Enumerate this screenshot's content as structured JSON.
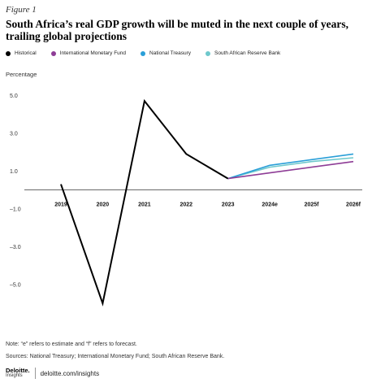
{
  "figure_label": "Figure 1",
  "title": "South Africa’s real GDP growth will be muted in the next couple of years, trailing global projections",
  "note": "Note: “e” refers to estimate and “f” refers to forecast.",
  "sources": "Sources: National Treasury; International Monetary Fund; South African Reserve Bank.",
  "footer": {
    "logo_main": "Deloitte.",
    "logo_sub": "Insights",
    "url": "deloitte.com/insights"
  },
  "chart_data": {
    "type": "line",
    "title": "",
    "xlabel": "",
    "ylabel": "Percentage",
    "categories": [
      "2019",
      "2020",
      "2021",
      "2022",
      "2023",
      "2024e",
      "2025f",
      "2026f"
    ],
    "ylim": [
      -7.5,
      6.0
    ],
    "yticks": [
      5.0,
      3.0,
      1.0,
      -1.0,
      -3.0,
      -5.0
    ],
    "ytick_labels": [
      "5.0",
      "3.0",
      "1.0",
      "–1.0",
      "–3.0",
      "–5.0"
    ],
    "grid": false,
    "legend_position": "top-left",
    "series": [
      {
        "name": "Historical",
        "color": "#000000",
        "values": [
          0.3,
          -6.0,
          4.7,
          1.9,
          0.6,
          null,
          null,
          null
        ]
      },
      {
        "name": "International Monetary Fund",
        "color": "#8e3d96",
        "values": [
          null,
          null,
          null,
          null,
          0.6,
          0.9,
          1.2,
          1.5
        ]
      },
      {
        "name": "National Treasury",
        "color": "#2a9fd8",
        "values": [
          null,
          null,
          null,
          null,
          0.6,
          1.3,
          1.6,
          1.9
        ]
      },
      {
        "name": "South African Reserve Bank",
        "color": "#6ec8cc",
        "values": [
          null,
          null,
          null,
          null,
          0.6,
          1.2,
          1.5,
          1.7
        ]
      }
    ]
  }
}
